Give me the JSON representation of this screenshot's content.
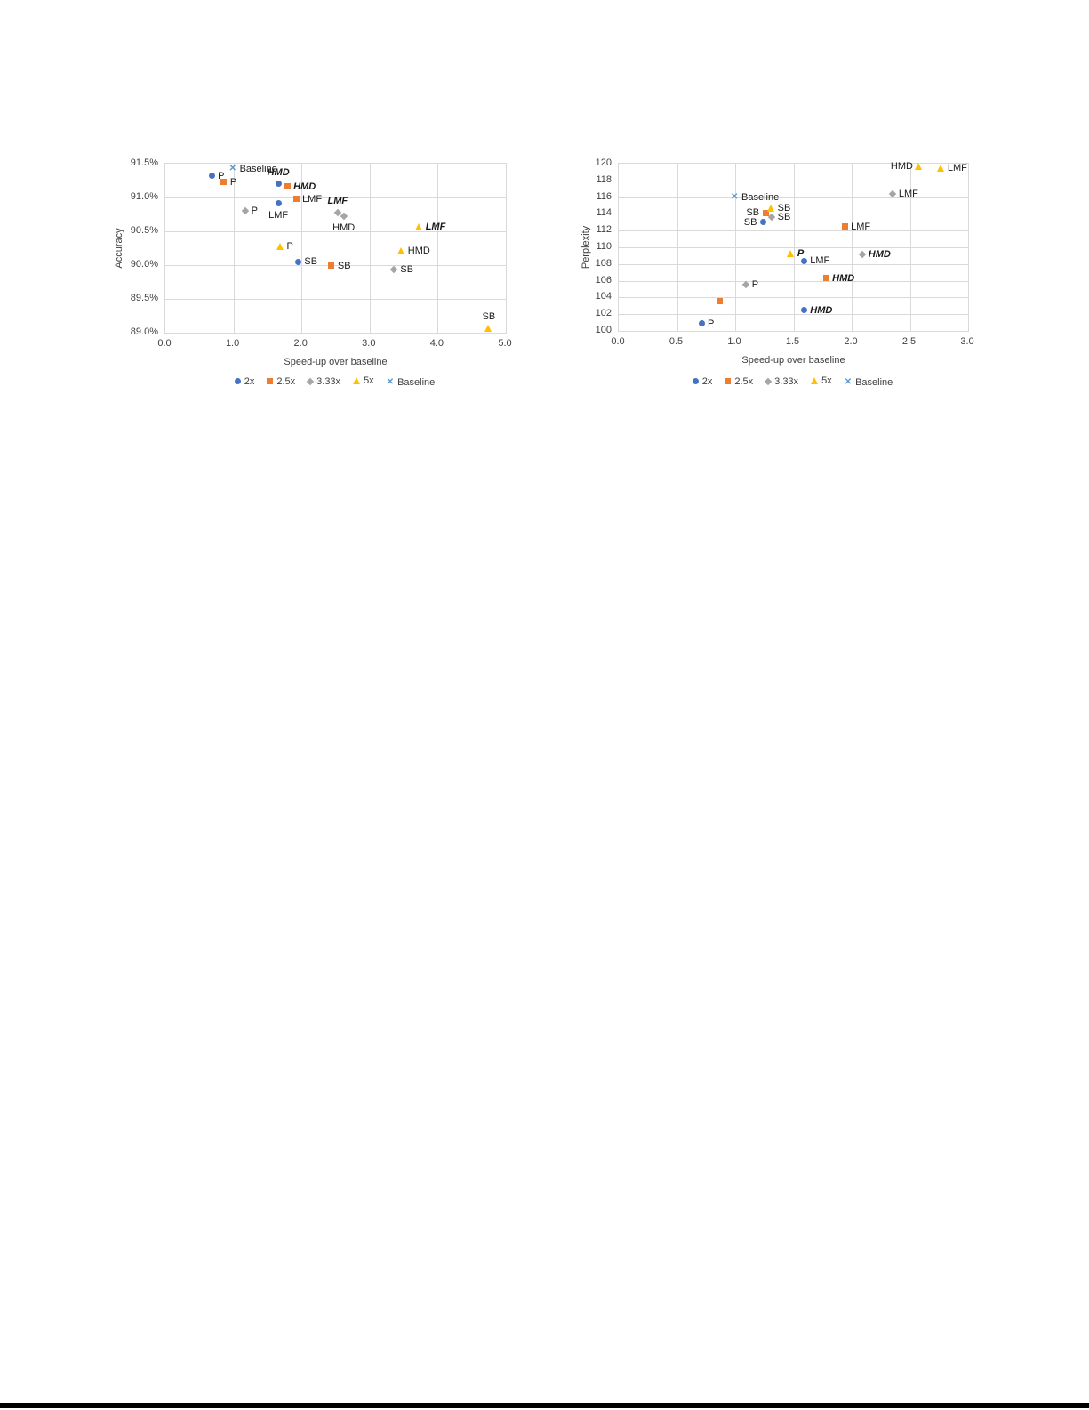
{
  "colors": {
    "series_2x": "#4472C4",
    "series_2_5x": "#ED7D31",
    "series_3_33x": "#A5A5A5",
    "series_5x": "#FFC000",
    "baseline": "#5B9BD5",
    "gridline": "#D9D9D9",
    "bottom_bar": "#000000"
  },
  "chart_data": [
    {
      "type": "scatter",
      "title": "",
      "xlabel": "Speed-up over baseline",
      "ylabel": "Accuracy",
      "xlim": [
        0.0,
        5.0
      ],
      "ylim": [
        89.0,
        91.5
      ],
      "xticks": [
        0,
        1,
        2,
        3,
        4,
        5
      ],
      "xtick_labels": [
        "0.0",
        "1.0",
        "2.0",
        "3.0",
        "4.0",
        "5.0"
      ],
      "yticks": [
        89.0,
        89.5,
        90.0,
        90.5,
        91.0,
        91.5
      ],
      "ytick_labels": [
        "89.0%",
        "89.5%",
        "90.0%",
        "90.5%",
        "91.0%",
        "91.5%"
      ],
      "grid": true,
      "legend_position": "bottom",
      "series": [
        {
          "name": "2x",
          "marker": "circle",
          "color": "#4472C4",
          "points": [
            {
              "x": 0.68,
              "y": 91.32,
              "label": "P",
              "label_pos": "right"
            },
            {
              "x": 1.66,
              "y": 91.2,
              "label": "HMD",
              "label_pos": "above",
              "bold": true
            },
            {
              "x": 1.66,
              "y": 90.91,
              "label": "LMF",
              "label_pos": "below"
            },
            {
              "x": 1.95,
              "y": 90.05,
              "label": "SB",
              "label_pos": "right"
            }
          ]
        },
        {
          "name": "2.5x",
          "marker": "square",
          "color": "#ED7D31",
          "points": [
            {
              "x": 0.86,
              "y": 91.23,
              "label": "P",
              "label_pos": "right"
            },
            {
              "x": 1.79,
              "y": 91.16,
              "label": "HMD",
              "label_pos": "right",
              "bold": true
            },
            {
              "x": 1.92,
              "y": 90.98,
              "label": "LMF",
              "label_pos": "right"
            },
            {
              "x": 2.44,
              "y": 89.99,
              "label": "SB",
              "label_pos": "right"
            }
          ]
        },
        {
          "name": "3.33x",
          "marker": "diamond",
          "color": "#A5A5A5",
          "points": [
            {
              "x": 1.17,
              "y": 90.8,
              "label": "P",
              "label_pos": "right"
            },
            {
              "x": 2.53,
              "y": 90.77,
              "label": "LMF",
              "label_pos": "above",
              "bold": true
            },
            {
              "x": 2.62,
              "y": 90.73,
              "label": "HMD",
              "label_pos": "below"
            },
            {
              "x": 3.36,
              "y": 89.94,
              "label": "SB",
              "label_pos": "right"
            }
          ]
        },
        {
          "name": "5x",
          "marker": "triangle",
          "color": "#FFC000",
          "points": [
            {
              "x": 1.69,
              "y": 90.28,
              "label": "P",
              "label_pos": "right"
            },
            {
              "x": 3.73,
              "y": 90.56,
              "label": "LMF",
              "label_pos": "right",
              "bold": true
            },
            {
              "x": 3.47,
              "y": 90.21,
              "label": "HMD",
              "label_pos": "right"
            },
            {
              "x": 4.75,
              "y": 89.07,
              "label": "SB",
              "label_pos": "above"
            }
          ]
        },
        {
          "name": "Baseline",
          "marker": "x",
          "color": "#5B9BD5",
          "points": [
            {
              "x": 1.0,
              "y": 91.42,
              "label": "Baseline",
              "label_pos": "right"
            }
          ]
        }
      ]
    },
    {
      "type": "scatter",
      "title": "",
      "xlabel": "Speed-up over baseline",
      "ylabel": "Perplexity",
      "xlim": [
        0.0,
        3.0
      ],
      "ylim": [
        100,
        120
      ],
      "xticks": [
        0,
        0.5,
        1.0,
        1.5,
        2.0,
        2.5,
        3.0
      ],
      "xtick_labels": [
        "0.0",
        "0.5",
        "1.0",
        "1.5",
        "2.0",
        "2.5",
        "3.0"
      ],
      "yticks": [
        100,
        102,
        104,
        106,
        108,
        110,
        112,
        114,
        116,
        118,
        120
      ],
      "ytick_labels": [
        "100",
        "102",
        "104",
        "106",
        "108",
        "110",
        "112",
        "114",
        "116",
        "118",
        "120"
      ],
      "grid": true,
      "legend_position": "bottom",
      "series": [
        {
          "name": "2x",
          "marker": "circle",
          "color": "#4472C4",
          "points": [
            {
              "x": 0.71,
              "y": 100.9,
              "label": "P",
              "label_pos": "right"
            },
            {
              "x": 1.59,
              "y": 102.5,
              "label": "HMD",
              "label_pos": "right",
              "bold": true
            },
            {
              "x": 1.59,
              "y": 108.4,
              "label": "LMF",
              "label_pos": "right"
            },
            {
              "x": 1.24,
              "y": 113.0,
              "label": "SB",
              "label_pos": "left"
            }
          ]
        },
        {
          "name": "2.5x",
          "marker": "square",
          "color": "#ED7D31",
          "points": [
            {
              "x": 0.87,
              "y": 103.6,
              "label": "",
              "label_pos": "right"
            },
            {
              "x": 1.78,
              "y": 106.3,
              "label": "HMD",
              "label_pos": "right",
              "bold": true
            },
            {
              "x": 1.94,
              "y": 112.5,
              "label": "LMF",
              "label_pos": "right"
            },
            {
              "x": 1.26,
              "y": 114.1,
              "label": "SB",
              "label_pos": "left"
            }
          ]
        },
        {
          "name": "3.33x",
          "marker": "diamond",
          "color": "#A5A5A5",
          "points": [
            {
              "x": 1.09,
              "y": 105.5,
              "label": "P",
              "label_pos": "right"
            },
            {
              "x": 2.09,
              "y": 109.2,
              "label": "HMD",
              "label_pos": "right",
              "bold": true
            },
            {
              "x": 2.35,
              "y": 116.4,
              "label": "LMF",
              "label_pos": "right"
            },
            {
              "x": 1.31,
              "y": 113.6,
              "label": "SB",
              "label_pos": "right"
            }
          ]
        },
        {
          "name": "5x",
          "marker": "triangle",
          "color": "#FFC000",
          "points": [
            {
              "x": 1.48,
              "y": 109.3,
              "label": "P",
              "label_pos": "right",
              "bold": true
            },
            {
              "x": 2.58,
              "y": 119.7,
              "label": "HMD",
              "label_pos": "left"
            },
            {
              "x": 2.77,
              "y": 119.5,
              "label": "LMF",
              "label_pos": "right"
            },
            {
              "x": 1.31,
              "y": 114.7,
              "label": "SB",
              "label_pos": "right"
            }
          ]
        },
        {
          "name": "Baseline",
          "marker": "x",
          "color": "#5B9BD5",
          "points": [
            {
              "x": 1.0,
              "y": 116.0,
              "label": "Baseline",
              "label_pos": "right"
            }
          ]
        }
      ]
    }
  ]
}
